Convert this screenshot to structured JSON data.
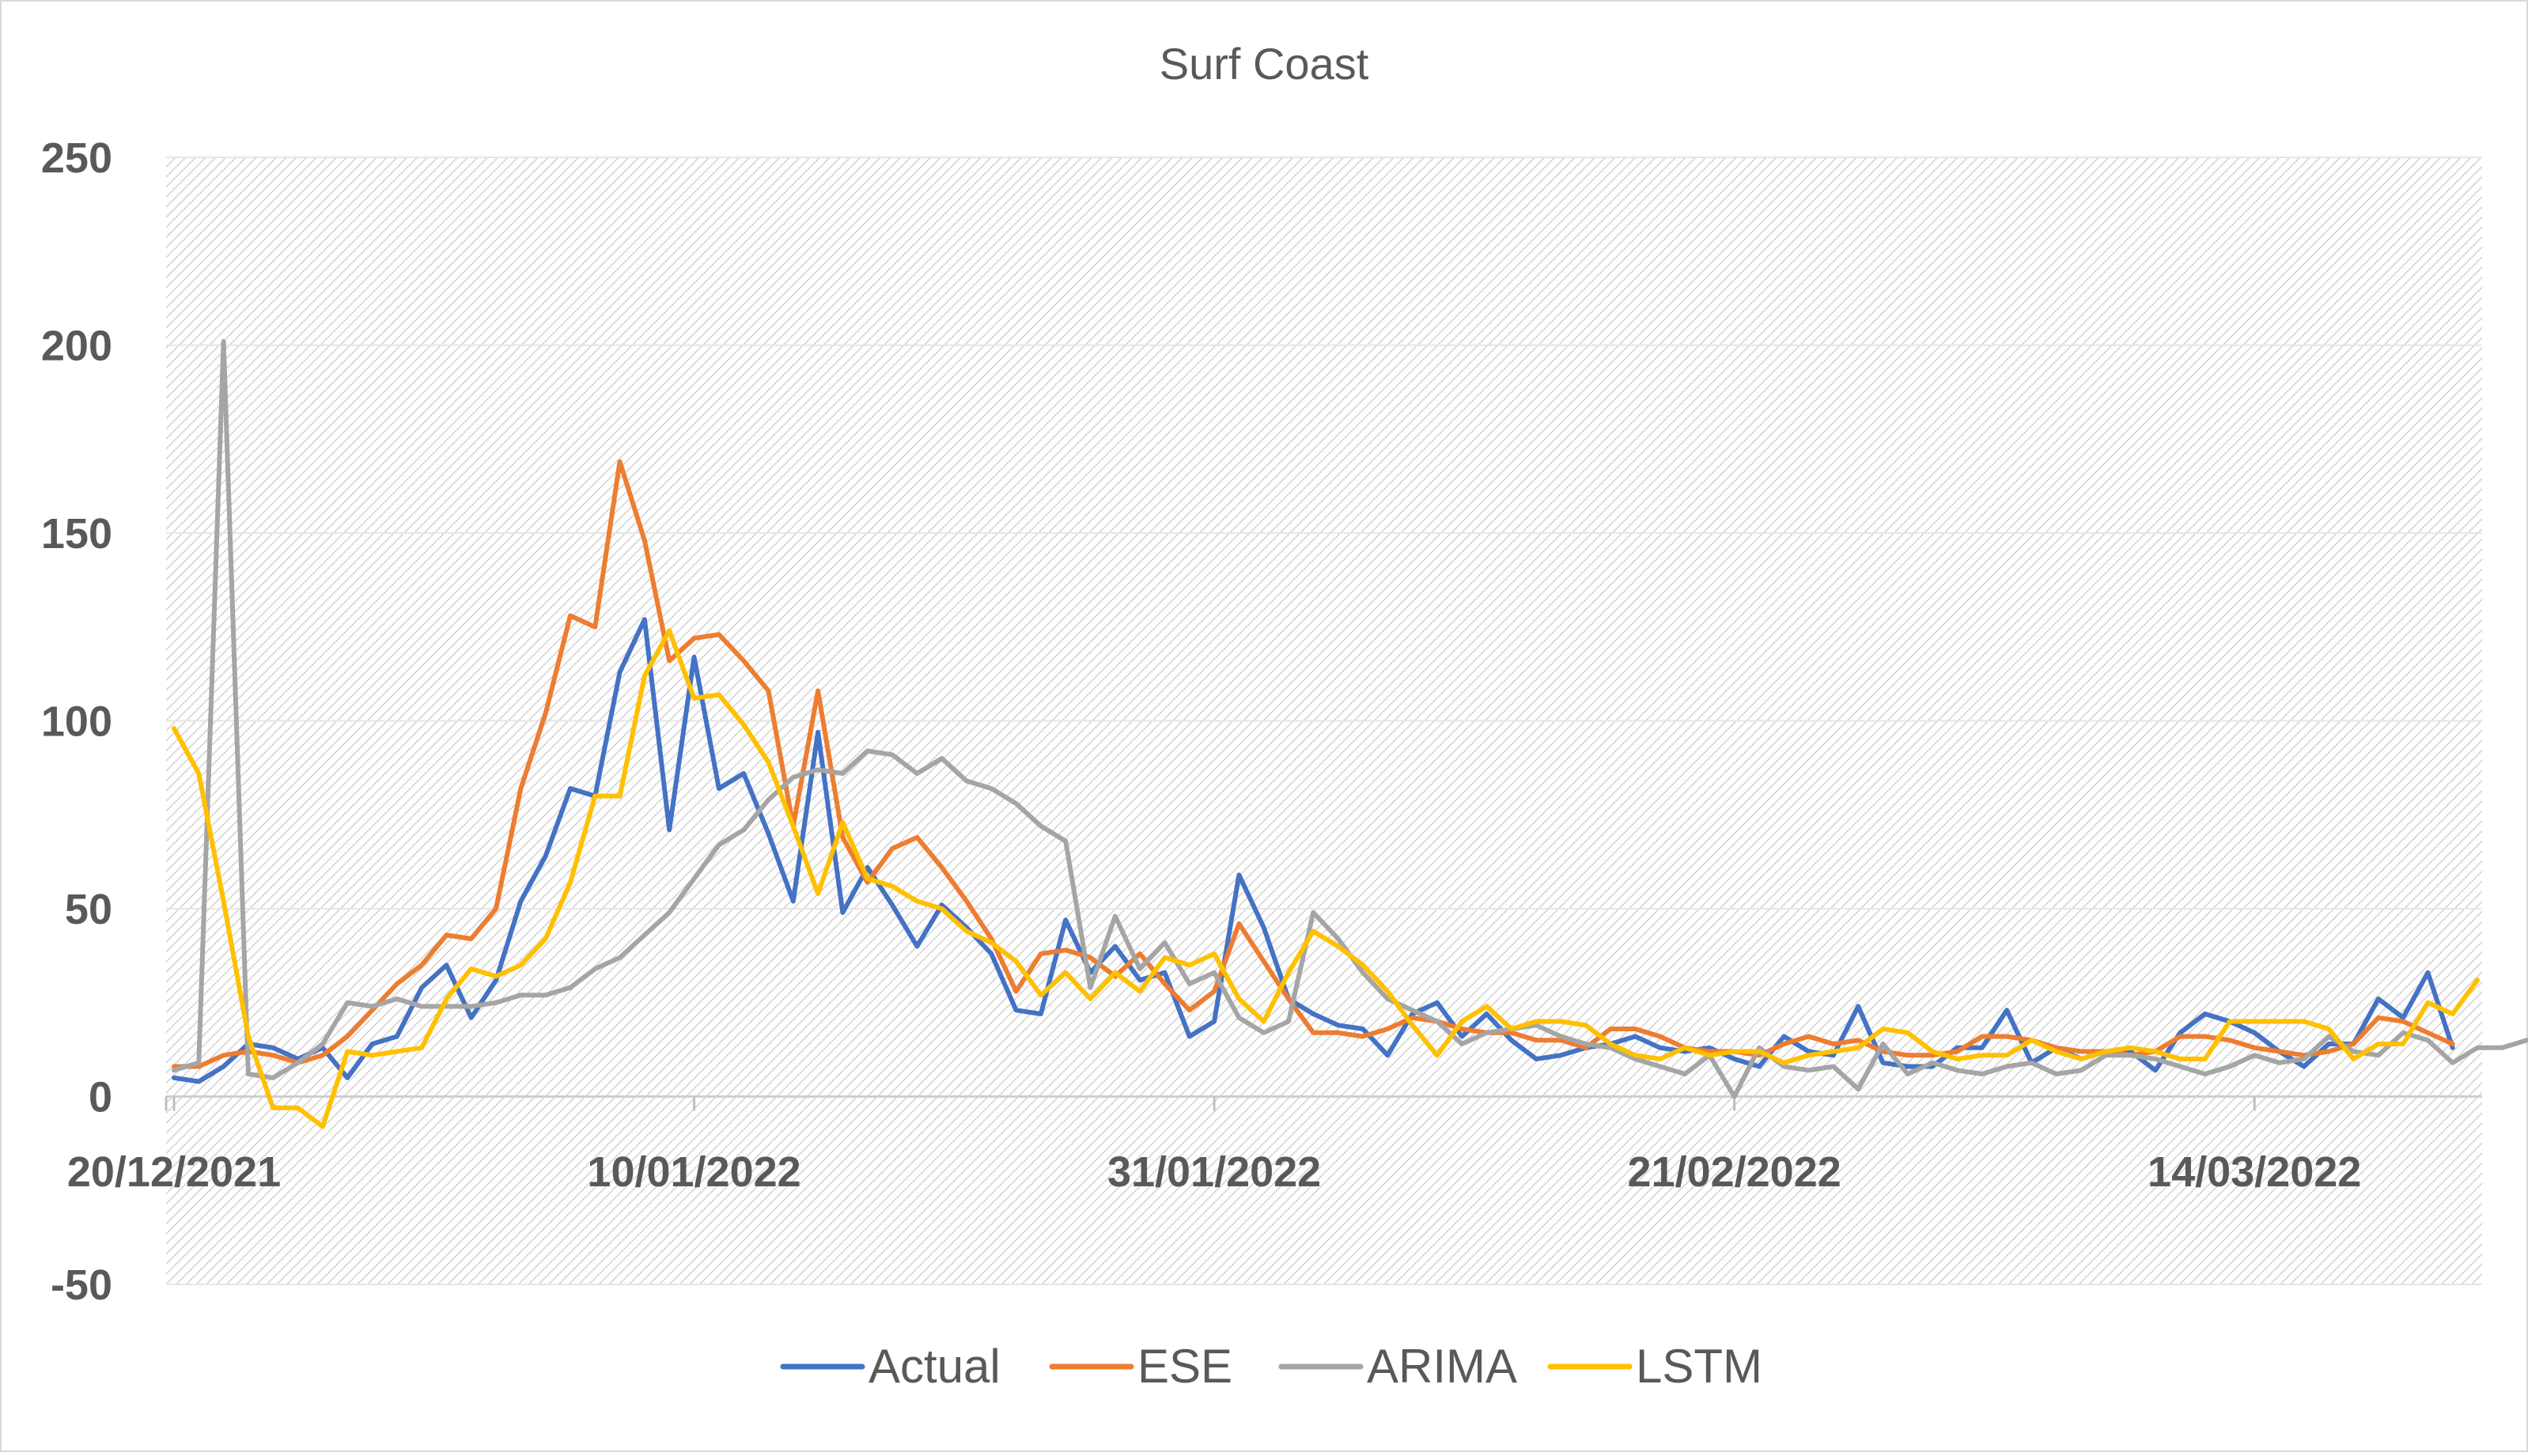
{
  "chart_data": {
    "type": "line",
    "title": "Surf Coast",
    "xlabel": "",
    "ylabel": "",
    "ylim": [
      -50,
      250
    ],
    "yticks": [
      -50,
      0,
      50,
      100,
      150,
      200,
      250
    ],
    "x_start": "20/12/2021",
    "x_end": "23/03/2022",
    "xticks": [
      "20/12/2021",
      "10/01/2022",
      "31/01/2022",
      "21/02/2022",
      "14/03/2022"
    ],
    "legend_position": "bottom",
    "grid": true,
    "colors": {
      "Actual": "#4472C4",
      "ESE": "#ED7D31",
      "ARIMA": "#A5A5A5",
      "LSTM": "#FFC000"
    },
    "series": [
      {
        "name": "Actual",
        "values": [
          5,
          4,
          8,
          14,
          13,
          10,
          13,
          5,
          14,
          16,
          29,
          35,
          21,
          31,
          52,
          64,
          82,
          80,
          113,
          127,
          71,
          117,
          82,
          86,
          70,
          52,
          97,
          49,
          61,
          51,
          40,
          51,
          45,
          38,
          23,
          22,
          47,
          33,
          40,
          31,
          33,
          16,
          20,
          59,
          45,
          26,
          22,
          19,
          18,
          11,
          22,
          25,
          16,
          22,
          15,
          10,
          11,
          13,
          14,
          16,
          13,
          12,
          13,
          10,
          8,
          16,
          12,
          11,
          24,
          9,
          8,
          8,
          13,
          13,
          23,
          9,
          13,
          10,
          12,
          12,
          7,
          17,
          22,
          20,
          17,
          12,
          8,
          14,
          14,
          26,
          21,
          33,
          13
        ]
      },
      {
        "name": "ESE",
        "values": [
          8,
          8,
          11,
          12,
          11,
          9,
          11,
          16,
          23,
          30,
          35,
          43,
          42,
          50,
          82,
          102,
          128,
          125,
          169,
          148,
          116,
          122,
          123,
          116,
          108,
          72,
          108,
          69,
          57,
          66,
          69,
          61,
          52,
          42,
          28,
          38,
          39,
          37,
          32,
          38,
          30,
          23,
          28,
          46,
          36,
          26,
          17,
          17,
          16,
          18,
          21,
          20,
          18,
          17,
          17,
          15,
          15,
          13,
          18,
          18,
          16,
          13,
          12,
          12,
          11,
          14,
          16,
          14,
          15,
          12,
          11,
          11,
          12,
          16,
          16,
          15,
          13,
          12,
          12,
          11,
          12,
          16,
          16,
          15,
          13,
          12,
          11,
          12,
          14,
          21,
          20,
          17,
          14
        ]
      },
      {
        "name": "ARIMA",
        "values": [
          7,
          9,
          201,
          6,
          5,
          9,
          14,
          25,
          24,
          26,
          24,
          24,
          24,
          25,
          27,
          27,
          29,
          34,
          37,
          43,
          49,
          58,
          67,
          71,
          79,
          85,
          87,
          86,
          92,
          91,
          86,
          90,
          84,
          82,
          78,
          72,
          68,
          29,
          48,
          34,
          41,
          30,
          33,
          21,
          17,
          20,
          49,
          42,
          33,
          26,
          23,
          20,
          14,
          17,
          18,
          19,
          16,
          14,
          13,
          10,
          8,
          6,
          11,
          0,
          13,
          8,
          7,
          8,
          2,
          14,
          6,
          9,
          7,
          6,
          8,
          9,
          6,
          7,
          11,
          11,
          10,
          8,
          6,
          8,
          11,
          9,
          10,
          16,
          12,
          11,
          17,
          15,
          9,
          13,
          13,
          15
        ]
      },
      {
        "name": "LSTM",
        "values": [
          98,
          86,
          52,
          16,
          -3,
          -3,
          -8,
          12,
          11,
          12,
          13,
          26,
          34,
          32,
          35,
          42,
          57,
          80,
          80,
          112,
          124,
          106,
          107,
          99,
          89,
          72,
          54,
          73,
          58,
          56,
          52,
          50,
          44,
          41,
          36,
          27,
          33,
          26,
          33,
          28,
          37,
          35,
          38,
          26,
          20,
          33,
          44,
          40,
          35,
          28,
          19,
          11,
          20,
          24,
          18,
          20,
          20,
          19,
          14,
          11,
          10,
          13,
          11,
          12,
          12,
          9,
          11,
          12,
          13,
          18,
          17,
          12,
          10,
          11,
          11,
          15,
          12,
          10,
          12,
          13,
          12,
          10,
          10,
          20,
          20,
          20,
          20,
          18,
          10,
          14,
          14,
          25,
          22,
          31
        ]
      }
    ]
  }
}
